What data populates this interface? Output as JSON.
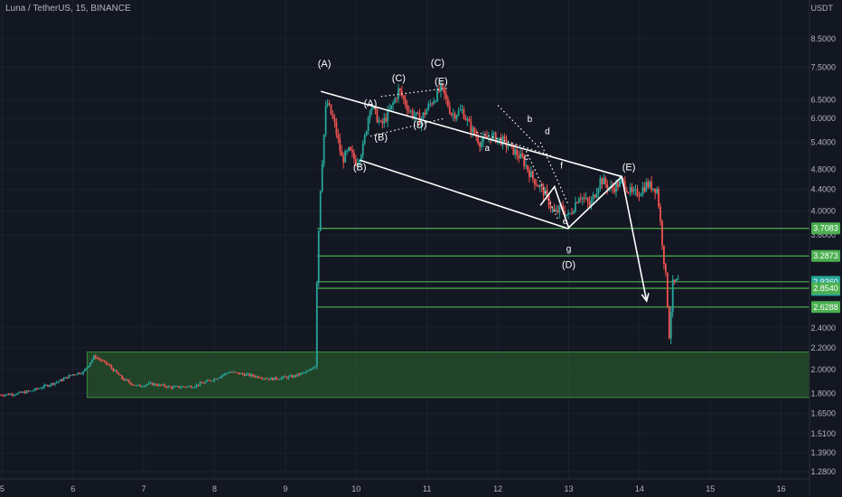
{
  "header": {
    "symbol": "Luna / TetherUS, 15, BINANCE",
    "currency": "USDT"
  },
  "chart_data": {
    "type": "candlestick",
    "y_scale": "log",
    "ylim": [
      1.24,
      9.3
    ],
    "xlim": [
      4.97,
      16.4
    ],
    "y_ticks": [
      {
        "v": 8.5,
        "label": "8.5000"
      },
      {
        "v": 7.5,
        "label": "7.5000"
      },
      {
        "v": 6.5,
        "label": "6.5000"
      },
      {
        "v": 6.0,
        "label": "6.0000"
      },
      {
        "v": 5.4,
        "label": "5.4000"
      },
      {
        "v": 4.8,
        "label": "4.8000"
      },
      {
        "v": 4.4,
        "label": "4.4000"
      },
      {
        "v": 4.0,
        "label": "4.0000"
      },
      {
        "v": 3.6,
        "label": "3.6000"
      },
      {
        "v": 2.4,
        "label": "2.4000"
      },
      {
        "v": 2.2,
        "label": "2.2000"
      },
      {
        "v": 2.0,
        "label": "2.0000"
      },
      {
        "v": 1.8,
        "label": "1.8000"
      },
      {
        "v": 1.65,
        "label": "1.6500"
      },
      {
        "v": 1.51,
        "label": "1.5100"
      },
      {
        "v": 1.39,
        "label": "1.3900"
      },
      {
        "v": 1.28,
        "label": "1.2800"
      }
    ],
    "x_ticks": [
      {
        "v": 5,
        "label": "5"
      },
      {
        "v": 6,
        "label": "6"
      },
      {
        "v": 7,
        "label": "7"
      },
      {
        "v": 8,
        "label": "8"
      },
      {
        "v": 9,
        "label": "9"
      },
      {
        "v": 10,
        "label": "10"
      },
      {
        "v": 11,
        "label": "11"
      },
      {
        "v": 12,
        "label": "12"
      },
      {
        "v": 13,
        "label": "13"
      },
      {
        "v": 14,
        "label": "14"
      },
      {
        "v": 15,
        "label": "15"
      },
      {
        "v": 16,
        "label": "16"
      }
    ],
    "price_path": [
      [
        4.97,
        1.79
      ],
      [
        5.2,
        1.8
      ],
      [
        5.4,
        1.82
      ],
      [
        5.6,
        1.86
      ],
      [
        5.8,
        1.9
      ],
      [
        6.0,
        1.96
      ],
      [
        6.15,
        1.98
      ],
      [
        6.3,
        2.12
      ],
      [
        6.5,
        2.04
      ],
      [
        6.7,
        1.92
      ],
      [
        6.9,
        1.86
      ],
      [
        7.1,
        1.88
      ],
      [
        7.4,
        1.85
      ],
      [
        7.7,
        1.86
      ],
      [
        8.0,
        1.92
      ],
      [
        8.2,
        1.98
      ],
      [
        8.5,
        1.95
      ],
      [
        8.8,
        1.92
      ],
      [
        9.1,
        1.94
      ],
      [
        9.35,
        1.99
      ],
      [
        9.42,
        2.05
      ],
      [
        9.45,
        3.2
      ],
      [
        9.5,
        4.6
      ],
      [
        9.58,
        6.5
      ],
      [
        9.7,
        5.8
      ],
      [
        9.8,
        5.0
      ],
      [
        9.9,
        5.2
      ],
      [
        10.0,
        4.95
      ],
      [
        10.1,
        5.3
      ],
      [
        10.2,
        6.4
      ],
      [
        10.35,
        5.8
      ],
      [
        10.5,
        6.3
      ],
      [
        10.6,
        6.8
      ],
      [
        10.75,
        6.2
      ],
      [
        10.9,
        5.95
      ],
      [
        11.05,
        6.4
      ],
      [
        11.2,
        6.85
      ],
      [
        11.35,
        6.1
      ],
      [
        11.5,
        6.2
      ],
      [
        11.6,
        5.8
      ],
      [
        11.75,
        5.4
      ],
      [
        11.9,
        5.55
      ],
      [
        12.05,
        5.45
      ],
      [
        12.2,
        5.25
      ],
      [
        12.35,
        5.0
      ],
      [
        12.5,
        4.6
      ],
      [
        12.65,
        4.35
      ],
      [
        12.8,
        3.95
      ],
      [
        12.9,
        4.05
      ],
      [
        13.0,
        3.9
      ],
      [
        13.15,
        4.3
      ],
      [
        13.3,
        4.1
      ],
      [
        13.45,
        4.6
      ],
      [
        13.6,
        4.4
      ],
      [
        13.75,
        4.55
      ],
      [
        13.9,
        4.3
      ],
      [
        14.0,
        4.35
      ],
      [
        14.1,
        4.5
      ],
      [
        14.25,
        4.4
      ],
      [
        14.32,
        3.5
      ],
      [
        14.38,
        2.9
      ],
      [
        14.42,
        2.33
      ],
      [
        14.47,
        2.9
      ],
      [
        14.55,
        2.94
      ]
    ],
    "demand_zone": {
      "x0": 6.2,
      "x1": 16.4,
      "y_low": 1.77,
      "y_high": 2.16
    },
    "levels": [
      {
        "price": 3.7083,
        "label": "3.7083"
      },
      {
        "price": 3.2873,
        "label": "3.2873"
      },
      {
        "price": 2.936,
        "label": "2.9360",
        "sublabel": "01:29",
        "current": true
      },
      {
        "price": 2.854,
        "label": "2.8540"
      },
      {
        "price": 2.6288,
        "label": "2.6288"
      }
    ],
    "level_x0": 9.45,
    "wave_labels": [
      {
        "text": "(A)",
        "x": 9.55,
        "y": 7.52
      },
      {
        "text": "(B)",
        "x": 10.05,
        "y": 4.78
      },
      {
        "text": "(C)",
        "x": 11.15,
        "y": 7.55
      },
      {
        "text": "(D)",
        "x": 13.0,
        "y": 3.12
      },
      {
        "text": "(E)",
        "x": 13.85,
        "y": 4.78
      },
      {
        "text": "(A)",
        "x": 10.2,
        "y": 6.32
      },
      {
        "text": "(B)",
        "x": 10.35,
        "y": 5.45
      },
      {
        "text": "(C)",
        "x": 10.6,
        "y": 7.05
      },
      {
        "text": "(D)",
        "x": 10.9,
        "y": 5.75
      },
      {
        "text": "(E)",
        "x": 11.2,
        "y": 6.95
      },
      {
        "text": "a",
        "x": 11.85,
        "y": 5.2
      },
      {
        "text": "b",
        "x": 12.45,
        "y": 5.9
      },
      {
        "text": "c",
        "x": 12.4,
        "y": 5.0
      },
      {
        "text": "d",
        "x": 12.7,
        "y": 5.6
      },
      {
        "text": "e",
        "x": 12.95,
        "y": 3.78
      },
      {
        "text": "f",
        "x": 12.9,
        "y": 4.82
      },
      {
        "text": "g",
        "x": 13.0,
        "y": 3.35
      }
    ],
    "trendlines": [
      [
        [
          9.5,
          6.75
        ],
        [
          13.75,
          4.65
        ]
      ],
      [
        [
          10.05,
          5.0
        ],
        [
          13.0,
          3.7
        ]
      ]
    ],
    "wave_path": [
      [
        12.6,
        4.1
      ],
      [
        12.8,
        4.45
      ],
      [
        13.0,
        3.72
      ],
      [
        13.75,
        4.65
      ],
      [
        14.1,
        2.7
      ]
    ],
    "dotted_lines": [
      [
        [
          10.2,
          5.55
        ],
        [
          11.25,
          6.0
        ]
      ],
      [
        [
          10.35,
          6.6
        ],
        [
          11.3,
          6.85
        ]
      ],
      [
        [
          11.7,
          5.65
        ],
        [
          12.75,
          5.1
        ]
      ],
      [
        [
          12.0,
          6.35
        ],
        [
          12.6,
          5.25
        ]
      ],
      [
        [
          12.4,
          5.2
        ],
        [
          12.85,
          3.85
        ]
      ],
      [
        [
          12.6,
          5.4
        ],
        [
          13.0,
          4.1
        ]
      ]
    ]
  }
}
